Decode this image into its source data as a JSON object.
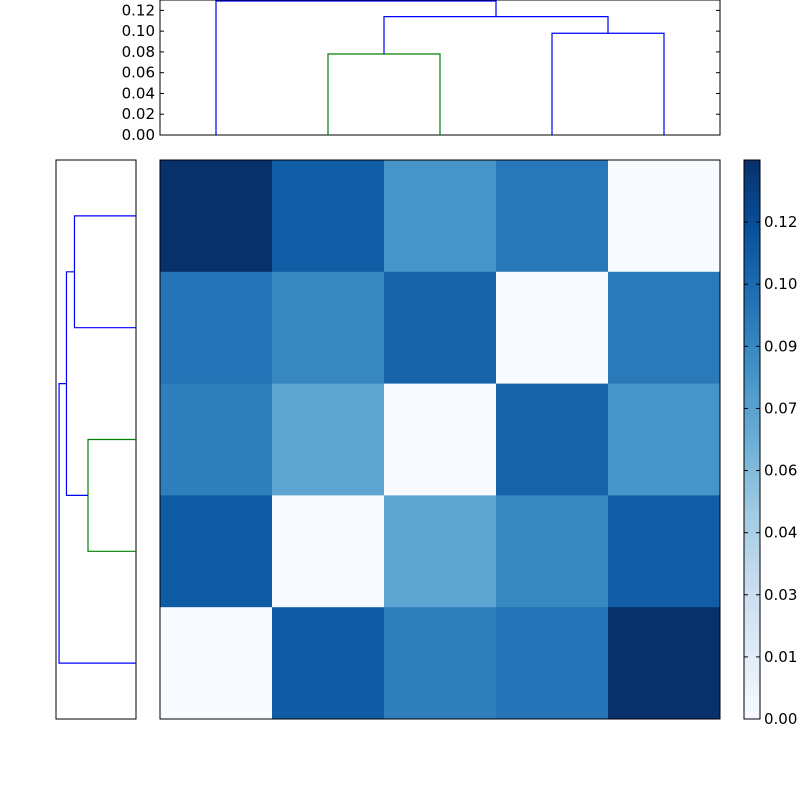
{
  "chart_data": [
    {
      "type": "dendrogram",
      "orientation": "top",
      "y_ticks": [
        "0.00",
        "0.02",
        "0.04",
        "0.06",
        "0.08",
        "0.10",
        "0.12"
      ],
      "ylim": [
        0,
        0.13
      ],
      "links": [
        {
          "left_x": 2,
          "right_x": 3,
          "height": 0.078,
          "left_base": 0,
          "right_base": 0,
          "color": "#008000"
        },
        {
          "left_x": 4,
          "right_x": 5,
          "height": 0.098,
          "left_base": 0,
          "right_base": 0,
          "color": "#0000ff"
        },
        {
          "left_x": 2.5,
          "right_x": 4.5,
          "height": 0.114,
          "left_base": 0.078,
          "right_base": 0.098,
          "color": "#0000ff"
        },
        {
          "left_x": 1,
          "right_x": 3.5,
          "height": 0.129,
          "left_base": 0,
          "right_base": 0.114,
          "color": "#0000ff"
        }
      ]
    },
    {
      "type": "dendrogram",
      "orientation": "left",
      "xlim": [
        0,
        0.13
      ],
      "links": [
        {
          "left_x": 1,
          "right_x": 2,
          "height": 0.1,
          "left_base": 0,
          "right_base": 0,
          "color": "#0000ff"
        },
        {
          "left_x": 3,
          "right_x": 4,
          "height": 0.078,
          "left_base": 0,
          "right_base": 0,
          "color": "#008000"
        },
        {
          "left_x": 1.5,
          "right_x": 3.5,
          "height": 0.113,
          "left_base": 0.1,
          "right_base": 0.078,
          "color": "#0000ff"
        },
        {
          "left_x": 2.5,
          "right_x": 5,
          "height": 0.125,
          "left_base": 0.113,
          "right_base": 0,
          "color": "#0000ff"
        }
      ]
    },
    {
      "type": "heatmap",
      "colormap": "Blues",
      "vmin": 0,
      "vmax": 0.126,
      "values": [
        [
          0.126,
          0.104,
          0.077,
          0.091,
          0.0
        ],
        [
          0.093,
          0.084,
          0.101,
          0.0,
          0.09
        ],
        [
          0.088,
          0.068,
          0.0,
          0.101,
          0.077
        ],
        [
          0.105,
          0.0,
          0.068,
          0.083,
          0.104
        ],
        [
          0.0,
          0.105,
          0.088,
          0.093,
          0.126
        ]
      ],
      "colorbar_ticks": [
        "0.00",
        "0.01",
        "0.03",
        "0.04",
        "0.06",
        "0.07",
        "0.09",
        "0.10",
        "0.12"
      ],
      "colorbar_tick_values": [
        0.0,
        0.014,
        0.028,
        0.042,
        0.056,
        0.07,
        0.084,
        0.098,
        0.112
      ]
    }
  ]
}
